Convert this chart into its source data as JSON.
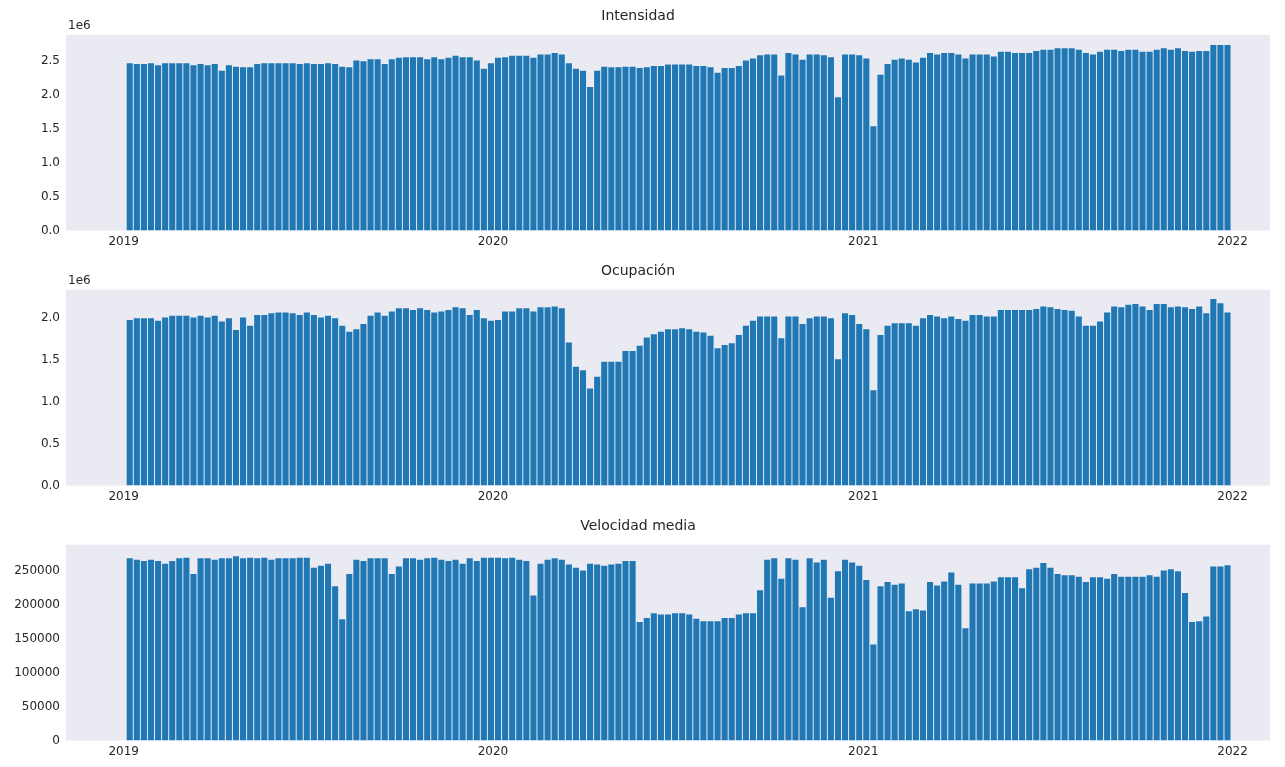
{
  "chart_data": [
    {
      "type": "bar",
      "title": "Intensidad",
      "annotations": [
        "1e6"
      ],
      "grid": false,
      "legend": false,
      "color": "#1f77b4",
      "x": [
        "2019-01-07",
        "2019-01-14",
        "2019-01-21",
        "2019-01-28",
        "2019-02-04",
        "2019-02-11",
        "2019-02-18",
        "2019-02-25",
        "2019-03-04",
        "2019-03-11",
        "2019-03-18",
        "2019-03-25",
        "2019-04-01",
        "2019-04-08",
        "2019-04-15",
        "2019-04-22",
        "2019-04-29",
        "2019-05-06",
        "2019-05-13",
        "2019-05-20",
        "2019-05-27",
        "2019-06-03",
        "2019-06-10",
        "2019-06-17",
        "2019-06-24",
        "2019-07-01",
        "2019-07-08",
        "2019-07-15",
        "2019-07-22",
        "2019-07-29",
        "2019-08-05",
        "2019-08-12",
        "2019-08-19",
        "2019-08-26",
        "2019-09-02",
        "2019-09-09",
        "2019-09-16",
        "2019-09-23",
        "2019-09-30",
        "2019-10-07",
        "2019-10-14",
        "2019-10-21",
        "2019-10-28",
        "2019-11-04",
        "2019-11-11",
        "2019-11-18",
        "2019-11-25",
        "2019-12-02",
        "2019-12-09",
        "2019-12-16",
        "2019-12-23",
        "2019-12-30",
        "2020-01-06",
        "2020-01-13",
        "2020-01-20",
        "2020-01-27",
        "2020-02-03",
        "2020-02-10",
        "2020-02-17",
        "2020-02-24",
        "2020-03-02",
        "2020-03-09",
        "2020-03-16",
        "2020-03-23",
        "2020-03-30",
        "2020-04-06",
        "2020-04-13",
        "2020-04-20",
        "2020-04-27",
        "2020-05-04",
        "2020-05-11",
        "2020-05-18",
        "2020-05-25",
        "2020-06-01",
        "2020-06-08",
        "2020-06-15",
        "2020-06-22",
        "2020-06-29",
        "2020-07-06",
        "2020-07-13",
        "2020-07-20",
        "2020-07-27",
        "2020-08-03",
        "2020-08-10",
        "2020-08-17",
        "2020-08-24",
        "2020-08-31",
        "2020-09-07",
        "2020-09-14",
        "2020-09-21",
        "2020-09-28",
        "2020-10-05",
        "2020-10-12",
        "2020-10-19",
        "2020-10-26",
        "2020-11-02",
        "2020-11-09",
        "2020-11-16",
        "2020-11-23",
        "2020-11-30",
        "2020-12-07",
        "2020-12-14",
        "2020-12-21",
        "2020-12-28",
        "2021-01-04",
        "2021-01-11",
        "2021-01-18",
        "2021-01-25",
        "2021-02-01",
        "2021-02-08",
        "2021-02-15",
        "2021-02-22",
        "2021-03-01",
        "2021-03-08",
        "2021-03-15",
        "2021-03-22",
        "2021-03-29",
        "2021-04-05",
        "2021-04-12",
        "2021-04-19",
        "2021-04-26",
        "2021-05-03",
        "2021-05-10",
        "2021-05-17",
        "2021-05-24",
        "2021-05-31",
        "2021-06-07",
        "2021-06-14",
        "2021-06-21",
        "2021-06-28",
        "2021-07-05",
        "2021-07-12",
        "2021-07-19",
        "2021-07-26",
        "2021-08-02",
        "2021-08-09",
        "2021-08-16",
        "2021-08-23",
        "2021-08-30",
        "2021-09-06",
        "2021-09-13",
        "2021-09-20",
        "2021-09-27",
        "2021-10-04",
        "2021-10-11",
        "2021-10-18",
        "2021-10-25",
        "2021-11-01",
        "2021-11-08",
        "2021-11-15",
        "2021-11-22",
        "2021-11-29",
        "2021-12-06",
        "2021-12-13",
        "2021-12-20",
        "2021-12-27"
      ],
      "values": [
        2.47,
        2.46,
        2.46,
        2.47,
        2.44,
        2.47,
        2.47,
        2.47,
        2.47,
        2.44,
        2.46,
        2.44,
        2.46,
        2.36,
        2.44,
        2.42,
        2.41,
        2.41,
        2.46,
        2.47,
        2.47,
        2.47,
        2.47,
        2.47,
        2.46,
        2.47,
        2.46,
        2.46,
        2.47,
        2.46,
        2.42,
        2.41,
        2.51,
        2.5,
        2.53,
        2.53,
        2.46,
        2.53,
        2.55,
        2.56,
        2.56,
        2.56,
        2.53,
        2.56,
        2.53,
        2.55,
        2.58,
        2.56,
        2.56,
        2.51,
        2.39,
        2.47,
        2.55,
        2.56,
        2.58,
        2.58,
        2.58,
        2.55,
        2.6,
        2.6,
        2.62,
        2.6,
        2.47,
        2.39,
        2.36,
        2.12,
        2.36,
        2.42,
        2.41,
        2.41,
        2.42,
        2.42,
        2.4,
        2.41,
        2.43,
        2.43,
        2.45,
        2.45,
        2.45,
        2.45,
        2.43,
        2.43,
        2.41,
        2.33,
        2.4,
        2.4,
        2.43,
        2.51,
        2.54,
        2.59,
        2.6,
        2.6,
        2.29,
        2.62,
        2.6,
        2.52,
        2.6,
        2.6,
        2.59,
        2.56,
        1.97,
        2.6,
        2.6,
        2.59,
        2.54,
        1.54,
        2.3,
        2.46,
        2.52,
        2.54,
        2.52,
        2.48,
        2.55,
        2.62,
        2.6,
        2.62,
        2.62,
        2.6,
        2.54,
        2.6,
        2.6,
        2.6,
        2.57,
        2.64,
        2.64,
        2.62,
        2.62,
        2.62,
        2.65,
        2.67,
        2.67,
        2.69,
        2.69,
        2.69,
        2.67,
        2.62,
        2.6,
        2.64,
        2.67,
        2.67,
        2.65,
        2.67,
        2.67,
        2.64,
        2.64,
        2.67,
        2.69,
        2.67,
        2.69,
        2.65,
        2.64,
        2.65,
        2.65,
        2.74,
        2.74,
        2.74
      ],
      "xlim": [
        "2018-11-05",
        "2022-02-07"
      ],
      "xticks": [
        "2019",
        "2020",
        "2021",
        "2022"
      ],
      "ylim": [
        0,
        2.89
      ],
      "yticks": [
        {
          "value": 0,
          "label": "0.0"
        },
        0.5,
        {
          "value": 1,
          "label": "1.0"
        },
        1.5,
        {
          "value": 2,
          "label": "2.0"
        },
        2.5
      ]
    },
    {
      "type": "bar",
      "title": "Ocupación",
      "annotations": [
        "1e6"
      ],
      "grid": false,
      "legend": false,
      "color": "#1f77b4",
      "x": [
        "2019-01-07",
        "2019-01-14",
        "2019-01-21",
        "2019-01-28",
        "2019-02-04",
        "2019-02-11",
        "2019-02-18",
        "2019-02-25",
        "2019-03-04",
        "2019-03-11",
        "2019-03-18",
        "2019-03-25",
        "2019-04-01",
        "2019-04-08",
        "2019-04-15",
        "2019-04-22",
        "2019-04-29",
        "2019-05-06",
        "2019-05-13",
        "2019-05-20",
        "2019-05-27",
        "2019-06-03",
        "2019-06-10",
        "2019-06-17",
        "2019-06-24",
        "2019-07-01",
        "2019-07-08",
        "2019-07-15",
        "2019-07-22",
        "2019-07-29",
        "2019-08-05",
        "2019-08-12",
        "2019-08-19",
        "2019-08-26",
        "2019-09-02",
        "2019-09-09",
        "2019-09-16",
        "2019-09-23",
        "2019-09-30",
        "2019-10-07",
        "2019-10-14",
        "2019-10-21",
        "2019-10-28",
        "2019-11-04",
        "2019-11-11",
        "2019-11-18",
        "2019-11-25",
        "2019-12-02",
        "2019-12-09",
        "2019-12-16",
        "2019-12-23",
        "2019-12-30",
        "2020-01-06",
        "2020-01-13",
        "2020-01-20",
        "2020-01-27",
        "2020-02-03",
        "2020-02-10",
        "2020-02-17",
        "2020-02-24",
        "2020-03-02",
        "2020-03-09",
        "2020-03-16",
        "2020-03-23",
        "2020-03-30",
        "2020-04-06",
        "2020-04-13",
        "2020-04-20",
        "2020-04-27",
        "2020-05-04",
        "2020-05-11",
        "2020-05-18",
        "2020-05-25",
        "2020-06-01",
        "2020-06-08",
        "2020-06-15",
        "2020-06-22",
        "2020-06-29",
        "2020-07-06",
        "2020-07-13",
        "2020-07-20",
        "2020-07-27",
        "2020-08-03",
        "2020-08-10",
        "2020-08-17",
        "2020-08-24",
        "2020-08-31",
        "2020-09-07",
        "2020-09-14",
        "2020-09-21",
        "2020-09-28",
        "2020-10-05",
        "2020-10-12",
        "2020-10-19",
        "2020-10-26",
        "2020-11-02",
        "2020-11-09",
        "2020-11-16",
        "2020-11-23",
        "2020-11-30",
        "2020-12-07",
        "2020-12-14",
        "2020-12-21",
        "2020-12-28",
        "2021-01-04",
        "2021-01-11",
        "2021-01-18",
        "2021-01-25",
        "2021-02-01",
        "2021-02-08",
        "2021-02-15",
        "2021-02-22",
        "2021-03-01",
        "2021-03-08",
        "2021-03-15",
        "2021-03-22",
        "2021-03-29",
        "2021-04-05",
        "2021-04-12",
        "2021-04-19",
        "2021-04-26",
        "2021-05-03",
        "2021-05-10",
        "2021-05-17",
        "2021-05-24",
        "2021-05-31",
        "2021-06-07",
        "2021-06-14",
        "2021-06-21",
        "2021-06-28",
        "2021-07-05",
        "2021-07-12",
        "2021-07-19",
        "2021-07-26",
        "2021-08-02",
        "2021-08-09",
        "2021-08-16",
        "2021-08-23",
        "2021-08-30",
        "2021-09-06",
        "2021-09-13",
        "2021-09-20",
        "2021-09-27",
        "2021-10-04",
        "2021-10-11",
        "2021-10-18",
        "2021-10-25",
        "2021-11-01",
        "2021-11-08",
        "2021-11-15",
        "2021-11-22",
        "2021-11-29",
        "2021-12-06",
        "2021-12-13",
        "2021-12-20",
        "2021-12-27"
      ],
      "values": [
        1.98,
        2,
        2,
        2,
        1.97,
        2.01,
        2.03,
        2.03,
        2.03,
        2.01,
        2.03,
        2.01,
        2.03,
        1.96,
        2,
        1.86,
        2.01,
        1.91,
        2.04,
        2.04,
        2.06,
        2.07,
        2.07,
        2.06,
        2.04,
        2.07,
        2.04,
        2.01,
        2.03,
        2,
        1.91,
        1.84,
        1.87,
        1.93,
        2.03,
        2.07,
        2.03,
        2.08,
        2.12,
        2.12,
        2.1,
        2.12,
        2.1,
        2.07,
        2.08,
        2.1,
        2.13,
        2.12,
        2.04,
        2.1,
        2,
        1.97,
        1.98,
        2.08,
        2.08,
        2.12,
        2.12,
        2.08,
        2.13,
        2.13,
        2.14,
        2.12,
        1.71,
        1.42,
        1.38,
        1.16,
        1.3,
        1.48,
        1.48,
        1.48,
        1.61,
        1.61,
        1.67,
        1.77,
        1.81,
        1.84,
        1.87,
        1.87,
        1.88,
        1.87,
        1.84,
        1.83,
        1.79,
        1.64,
        1.68,
        1.7,
        1.8,
        1.91,
        1.97,
        2.02,
        2.02,
        2.02,
        1.76,
        2.02,
        2.02,
        1.93,
        2,
        2.02,
        2.02,
        2,
        1.51,
        2.06,
        2.04,
        1.93,
        1.87,
        1.14,
        1.8,
        1.91,
        1.94,
        1.94,
        1.94,
        1.91,
        2,
        2.04,
        2.02,
        2,
        2.02,
        1.99,
        1.97,
        2.04,
        2.04,
        2.02,
        2.02,
        2.1,
        2.1,
        2.1,
        2.1,
        2.1,
        2.11,
        2.14,
        2.13,
        2.11,
        2.1,
        2.09,
        2.02,
        1.91,
        1.91,
        1.96,
        2.07,
        2.14,
        2.13,
        2.16,
        2.17,
        2.14,
        2.1,
        2.17,
        2.17,
        2.13,
        2.14,
        2.13,
        2.11,
        2.14,
        2.06,
        2.23,
        2.18,
        2.07
      ],
      "xlim": [
        "2018-11-05",
        "2022-02-07"
      ],
      "xticks": [
        "2019",
        "2020",
        "2021",
        "2022"
      ],
      "ylim": [
        0,
        2.34
      ],
      "yticks": [
        {
          "value": 0,
          "label": "0.0"
        },
        0.5,
        {
          "value": 1,
          "label": "1.0"
        },
        1.5,
        {
          "value": 2,
          "label": "2.0"
        }
      ]
    },
    {
      "type": "bar",
      "title": "Velocidad media",
      "grid": false,
      "legend": false,
      "color": "#1f77b4",
      "x": [
        "2019-01-07",
        "2019-01-14",
        "2019-01-21",
        "2019-01-28",
        "2019-02-04",
        "2019-02-11",
        "2019-02-18",
        "2019-02-25",
        "2019-03-04",
        "2019-03-11",
        "2019-03-18",
        "2019-03-25",
        "2019-04-01",
        "2019-04-08",
        "2019-04-15",
        "2019-04-22",
        "2019-04-29",
        "2019-05-06",
        "2019-05-13",
        "2019-05-20",
        "2019-05-27",
        "2019-06-03",
        "2019-06-10",
        "2019-06-17",
        "2019-06-24",
        "2019-07-01",
        "2019-07-08",
        "2019-07-15",
        "2019-07-22",
        "2019-07-29",
        "2019-08-05",
        "2019-08-12",
        "2019-08-19",
        "2019-08-26",
        "2019-09-02",
        "2019-09-09",
        "2019-09-16",
        "2019-09-23",
        "2019-09-30",
        "2019-10-07",
        "2019-10-14",
        "2019-10-21",
        "2019-10-28",
        "2019-11-04",
        "2019-11-11",
        "2019-11-18",
        "2019-11-25",
        "2019-12-02",
        "2019-12-09",
        "2019-12-16",
        "2019-12-23",
        "2019-12-30",
        "2020-01-06",
        "2020-01-13",
        "2020-01-20",
        "2020-01-27",
        "2020-02-03",
        "2020-02-10",
        "2020-02-17",
        "2020-02-24",
        "2020-03-02",
        "2020-03-09",
        "2020-03-16",
        "2020-03-23",
        "2020-03-30",
        "2020-04-06",
        "2020-04-13",
        "2020-04-20",
        "2020-04-27",
        "2020-05-04",
        "2020-05-11",
        "2020-05-18",
        "2020-05-25",
        "2020-06-01",
        "2020-06-08",
        "2020-06-15",
        "2020-06-22",
        "2020-06-29",
        "2020-07-06",
        "2020-07-13",
        "2020-07-20",
        "2020-07-27",
        "2020-08-03",
        "2020-08-10",
        "2020-08-17",
        "2020-08-24",
        "2020-08-31",
        "2020-09-07",
        "2020-09-14",
        "2020-09-21",
        "2020-09-28",
        "2020-10-05",
        "2020-10-12",
        "2020-10-19",
        "2020-10-26",
        "2020-11-02",
        "2020-11-09",
        "2020-11-16",
        "2020-11-23",
        "2020-11-30",
        "2020-12-07",
        "2020-12-14",
        "2020-12-21",
        "2020-12-28",
        "2021-01-04",
        "2021-01-11",
        "2021-01-18",
        "2021-01-25",
        "2021-02-01",
        "2021-02-08",
        "2021-02-15",
        "2021-02-22",
        "2021-03-01",
        "2021-03-08",
        "2021-03-15",
        "2021-03-22",
        "2021-03-29",
        "2021-04-05",
        "2021-04-12",
        "2021-04-19",
        "2021-04-26",
        "2021-05-03",
        "2021-05-10",
        "2021-05-17",
        "2021-05-24",
        "2021-05-31",
        "2021-06-07",
        "2021-06-14",
        "2021-06-21",
        "2021-06-28",
        "2021-07-05",
        "2021-07-12",
        "2021-07-19",
        "2021-07-26",
        "2021-08-02",
        "2021-08-09",
        "2021-08-16",
        "2021-08-23",
        "2021-08-30",
        "2021-09-06",
        "2021-09-13",
        "2021-09-20",
        "2021-09-27",
        "2021-10-04",
        "2021-10-11",
        "2021-10-18",
        "2021-10-25",
        "2021-11-01",
        "2021-11-08",
        "2021-11-15",
        "2021-11-22",
        "2021-11-29",
        "2021-12-06",
        "2021-12-13",
        "2021-12-20",
        "2021-12-27"
      ],
      "values": [
        269000,
        267000,
        265000,
        267000,
        265000,
        261000,
        265000,
        269000,
        270000,
        246000,
        269000,
        269000,
        267000,
        269000,
        269000,
        272000,
        269000,
        270000,
        269000,
        270000,
        267000,
        269000,
        269000,
        269000,
        270000,
        270000,
        255000,
        258000,
        261000,
        228000,
        179000,
        246000,
        267000,
        265000,
        269000,
        269000,
        269000,
        246000,
        257000,
        269000,
        269000,
        267000,
        269000,
        270000,
        267000,
        265000,
        267000,
        261000,
        269000,
        265000,
        270000,
        270000,
        270000,
        269000,
        270000,
        267000,
        265000,
        214000,
        261000,
        267000,
        269000,
        267000,
        260000,
        255000,
        251000,
        261000,
        260000,
        258000,
        260000,
        261000,
        265000,
        265000,
        175000,
        181000,
        188000,
        186000,
        186000,
        188000,
        188000,
        186000,
        180000,
        176000,
        176000,
        176000,
        181000,
        181000,
        186000,
        188000,
        188000,
        222000,
        267000,
        269000,
        239000,
        269000,
        267000,
        197000,
        269000,
        263000,
        267000,
        211000,
        250000,
        267000,
        263000,
        258000,
        237000,
        142000,
        228000,
        234000,
        230000,
        232000,
        191000,
        194000,
        192000,
        234000,
        229000,
        235000,
        248000,
        230000,
        166000,
        232000,
        232000,
        232000,
        235000,
        241000,
        241000,
        241000,
        225000,
        253000,
        255000,
        262000,
        255000,
        246000,
        244000,
        244000,
        242000,
        234000,
        241000,
        241000,
        239000,
        246000,
        242000,
        242000,
        242000,
        242000,
        244000,
        242000,
        251000,
        253000,
        250000,
        218000,
        175000,
        176000,
        183000,
        257000,
        257000,
        259000
      ],
      "xlim": [
        "2018-11-05",
        "2022-02-07"
      ],
      "xticks": [
        "2019",
        "2020",
        "2021",
        "2022"
      ],
      "ylim": [
        0,
        289000
      ],
      "yticks": [
        0,
        50000,
        100000,
        150000,
        200000,
        250000
      ]
    }
  ]
}
